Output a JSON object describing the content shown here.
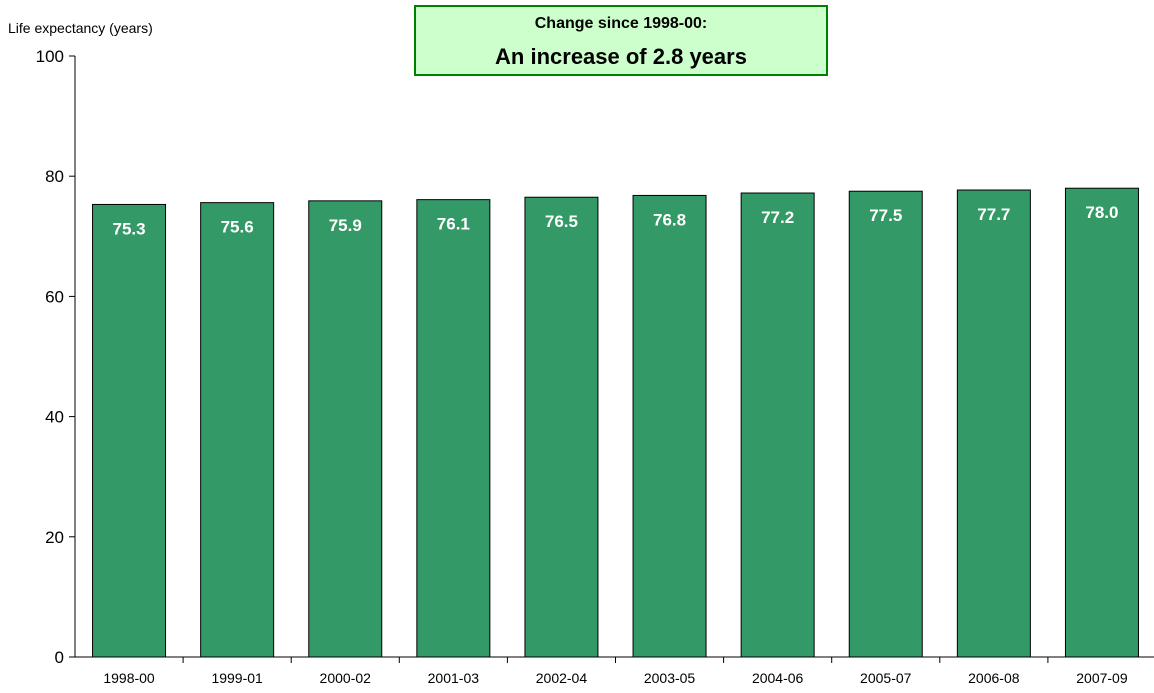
{
  "chart_data": {
    "type": "bar",
    "ylabel": "Life expectancy (years)",
    "xlabel": "",
    "ylim": [
      0,
      100
    ],
    "yticks": [
      0,
      20,
      40,
      60,
      80,
      100
    ],
    "grid": false,
    "categories": [
      "1998-00",
      "1999-01",
      "2000-02",
      "2001-03",
      "2002-04",
      "2003-05",
      "2004-06",
      "2005-07",
      "2006-08",
      "2007-09"
    ],
    "values": [
      75.3,
      75.6,
      75.9,
      76.1,
      76.5,
      76.8,
      77.2,
      77.5,
      77.7,
      78.0
    ],
    "value_labels": [
      "75.3",
      "75.6",
      "75.9",
      "76.1",
      "76.5",
      "76.8",
      "77.2",
      "77.5",
      "77.7",
      "78.0"
    ],
    "bar_color": "#339966",
    "annotation": {
      "line1": "Change since 1998-00:",
      "line2": "An increase of 2.8 years",
      "fill": "#ccffcc",
      "border": "#008000"
    }
  }
}
